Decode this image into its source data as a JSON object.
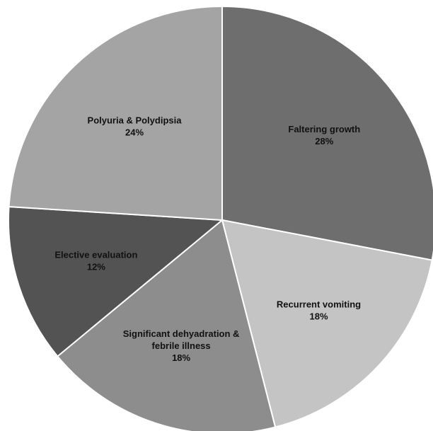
{
  "chart_data": {
    "type": "pie",
    "slices": [
      {
        "label_lines": [
          "Faltering growth"
        ],
        "value": 28,
        "pct_label": "28%",
        "color": "#6e6e6e"
      },
      {
        "label_lines": [
          "Recurrent vomiting"
        ],
        "value": 18,
        "pct_label": "18%",
        "color": "#c4c4c4"
      },
      {
        "label_lines": [
          "Significant dehyadration &",
          "febrile illness"
        ],
        "value": 18,
        "pct_label": "18%",
        "color": "#8d8d8d"
      },
      {
        "label_lines": [
          "Elective evaluation"
        ],
        "value": 12,
        "pct_label": "12%",
        "color": "#535353"
      },
      {
        "label_lines": [
          "Polyuria & Polydipsia"
        ],
        "value": 24,
        "pct_label": "24%",
        "color": "#a4a4a4"
      }
    ],
    "start_angle_deg": 0,
    "direction": "clockwise",
    "slice_border_color": "#ffffff"
  }
}
